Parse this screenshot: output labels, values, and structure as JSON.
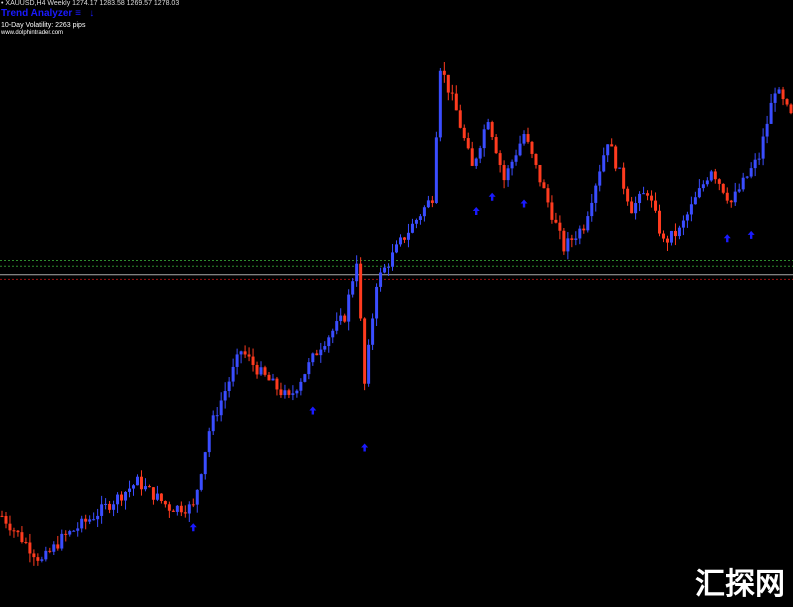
{
  "header": {
    "info_line": "• XAUUSD,H4 Weekly  1274.17 1283.58 1269.57 1278.03",
    "indicator_title": "Trend Analyzer",
    "indicator_symbol": "≡",
    "indicator_arrow": "↓",
    "volatility": "10-Day Volatility: 2263 pips",
    "website": "www.dolphintrader.com"
  },
  "watermark": "汇探网",
  "colors": {
    "background": "#000000",
    "bull": "#3a4dff",
    "bear": "#ff3b1f",
    "arrow": "#1a1aff",
    "level_green": "#2e8b2e",
    "level_gray": "#aaaaaa",
    "level_red": "#a01010",
    "title": "#1a1aff"
  },
  "chart_data": {
    "type": "candlestick",
    "title": "",
    "xlabel": "",
    "ylabel": "",
    "grid": false,
    "legend": "none",
    "ylim": [
      0,
      100
    ],
    "price_path": [
      [
        0,
        13
      ],
      [
        10,
        5
      ],
      [
        15,
        9
      ],
      [
        25,
        14
      ],
      [
        34,
        19
      ],
      [
        42,
        14.5
      ],
      [
        48,
        14.5
      ],
      [
        52,
        28
      ],
      [
        60,
        42
      ],
      [
        65,
        38
      ],
      [
        72,
        33.5
      ],
      [
        80,
        43
      ],
      [
        86,
        48
      ],
      [
        89,
        58
      ],
      [
        91,
        36
      ],
      [
        94,
        54
      ],
      [
        100,
        61
      ],
      [
        108,
        69
      ],
      [
        110,
        92
      ],
      [
        114,
        84
      ],
      [
        118,
        74
      ],
      [
        122,
        83
      ],
      [
        126,
        72
      ],
      [
        131,
        80
      ],
      [
        136,
        70
      ],
      [
        141,
        60
      ],
      [
        146,
        64
      ],
      [
        152,
        79
      ],
      [
        158,
        67
      ],
      [
        162,
        70
      ],
      [
        166,
        61
      ],
      [
        170,
        63
      ],
      [
        178,
        74
      ],
      [
        183,
        68
      ],
      [
        190,
        76
      ],
      [
        194,
        88
      ],
      [
        198,
        83
      ]
    ],
    "levels": [
      {
        "value": 57.8,
        "style": "dotted",
        "color": "green"
      },
      {
        "value": 56.8,
        "style": "dotted",
        "color": "green"
      },
      {
        "value": 55.3,
        "style": "solid",
        "color": "gray"
      },
      {
        "value": 54.5,
        "style": "dotted",
        "color": "red"
      }
    ],
    "buy_arrows": [
      [
        48,
        11
      ],
      [
        78,
        31.5
      ],
      [
        91,
        25
      ],
      [
        119,
        66.5
      ],
      [
        123,
        69
      ],
      [
        131,
        67.8
      ],
      [
        182,
        61.7
      ],
      [
        188,
        62.3
      ]
    ]
  }
}
